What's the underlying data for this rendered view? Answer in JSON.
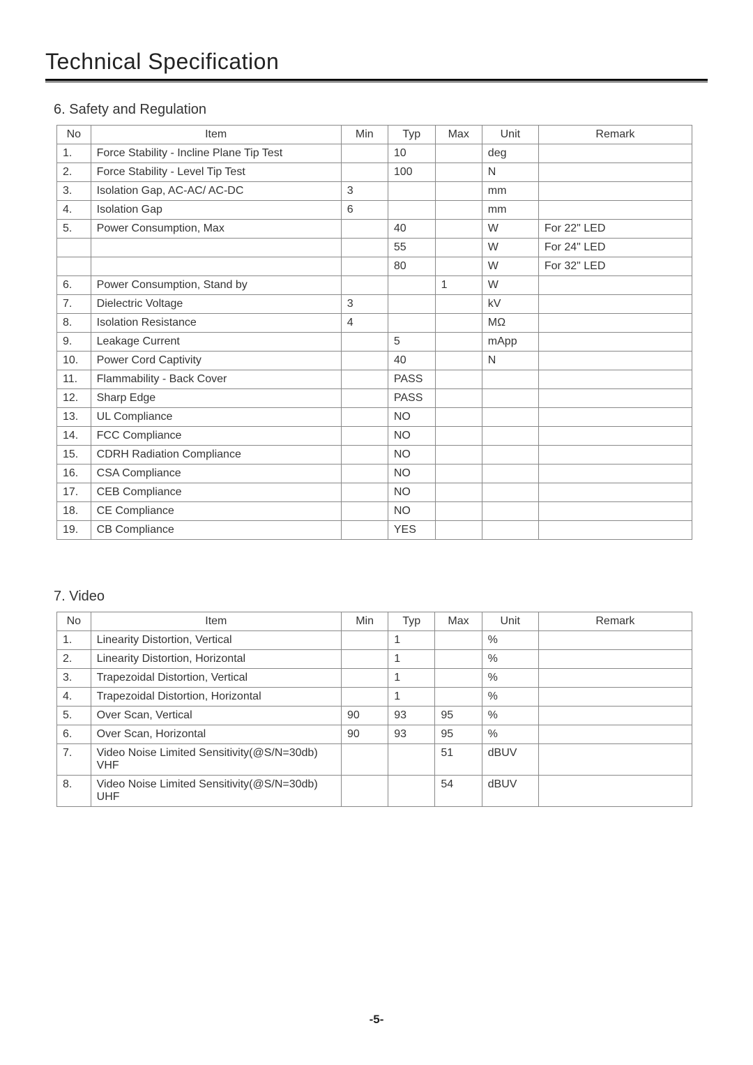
{
  "page_title": "Technical Specification",
  "page_number": "-5-",
  "table_headers": {
    "no": "No",
    "item": "Item",
    "min": "Min",
    "typ": "Typ",
    "max": "Max",
    "unit": "Unit",
    "remark": "Remark"
  },
  "section1": {
    "heading": "6. Safety and Regulation",
    "rows": [
      {
        "no": "1.",
        "item": "Force Stability - Incline Plane Tip Test",
        "min": "",
        "typ": "10",
        "max": "",
        "unit": "deg",
        "remark": ""
      },
      {
        "no": "2.",
        "item": "Force Stability - Level Tip Test",
        "min": "",
        "typ": "100",
        "max": "",
        "unit": "N",
        "remark": ""
      },
      {
        "no": "3.",
        "item": "Isolation Gap, AC-AC/ AC-DC",
        "min": "3",
        "typ": "",
        "max": "",
        "unit": "mm",
        "remark": ""
      },
      {
        "no": "4.",
        "item": "Isolation Gap",
        "min": "6",
        "typ": "",
        "max": "",
        "unit": "mm",
        "remark": ""
      },
      {
        "no": "5.",
        "item": "Power Consumption, Max",
        "min": "",
        "typ": "40",
        "max": "",
        "unit": "W",
        "remark": "For 22\" LED"
      },
      {
        "no": "",
        "item": "",
        "min": "",
        "typ": "55",
        "max": "",
        "unit": "W",
        "remark": "For 24\" LED"
      },
      {
        "no": "",
        "item": "",
        "min": "",
        "typ": "80",
        "max": "",
        "unit": "W",
        "remark": "For 32\" LED"
      },
      {
        "no": "6.",
        "item": "Power Consumption, Stand by",
        "min": "",
        "typ": "",
        "max": "1",
        "unit": "W",
        "remark": ""
      },
      {
        "no": "7.",
        "item": "Dielectric Voltage",
        "min": "3",
        "typ": "",
        "max": "",
        "unit": "kV",
        "remark": ""
      },
      {
        "no": "8.",
        "item": "Isolation Resistance",
        "min": "4",
        "typ": "",
        "max": "",
        "unit": "MΩ",
        "remark": ""
      },
      {
        "no": "9.",
        "item": "Leakage Current",
        "min": "",
        "typ": "5",
        "max": "",
        "unit": "mApp",
        "remark": ""
      },
      {
        "no": "10.",
        "item": "Power Cord Captivity",
        "min": "",
        "typ": "40",
        "max": "",
        "unit": "N",
        "remark": ""
      },
      {
        "no": "11.",
        "item": "Flammability - Back Cover",
        "min": "",
        "typ": "PASS",
        "max": "",
        "unit": "",
        "remark": ""
      },
      {
        "no": "12.",
        "item": "Sharp Edge",
        "min": "",
        "typ": "PASS",
        "max": "",
        "unit": "",
        "remark": ""
      },
      {
        "no": "13.",
        "item": "UL Compliance",
        "min": "",
        "typ": "NO",
        "max": "",
        "unit": "",
        "remark": ""
      },
      {
        "no": "14.",
        "item": "FCC Compliance",
        "min": "",
        "typ": "NO",
        "max": "",
        "unit": "",
        "remark": ""
      },
      {
        "no": "15.",
        "item": "CDRH Radiation Compliance",
        "min": "",
        "typ": "NO",
        "max": "",
        "unit": "",
        "remark": ""
      },
      {
        "no": "16.",
        "item": "CSA Compliance",
        "min": "",
        "typ": "NO",
        "max": "",
        "unit": "",
        "remark": ""
      },
      {
        "no": "17.",
        "item": "CEB Compliance",
        "min": "",
        "typ": "NO",
        "max": "",
        "unit": "",
        "remark": ""
      },
      {
        "no": "18.",
        "item": "CE Compliance",
        "min": "",
        "typ": "NO",
        "max": "",
        "unit": "",
        "remark": ""
      },
      {
        "no": "19.",
        "item": "CB Compliance",
        "min": "",
        "typ": "YES",
        "max": "",
        "unit": "",
        "remark": ""
      }
    ]
  },
  "section2": {
    "heading": "7. Video",
    "rows": [
      {
        "no": "1.",
        "item": "Linearity Distortion, Vertical",
        "min": "",
        "typ": "1",
        "max": "",
        "unit": "%",
        "remark": ""
      },
      {
        "no": "2.",
        "item": "Linearity Distortion, Horizontal",
        "min": "",
        "typ": "1",
        "max": "",
        "unit": "%",
        "remark": ""
      },
      {
        "no": "3.",
        "item": "Trapezoidal Distortion, Vertical",
        "min": "",
        "typ": "1",
        "max": "",
        "unit": "%",
        "remark": ""
      },
      {
        "no": "4.",
        "item": "Trapezoidal Distortion, Horizontal",
        "min": "",
        "typ": "1",
        "max": "",
        "unit": "%",
        "remark": ""
      },
      {
        "no": "5.",
        "item": "Over Scan, Vertical",
        "min": "90",
        "typ": "93",
        "max": "95",
        "unit": "%",
        "remark": ""
      },
      {
        "no": "6.",
        "item": "Over Scan, Horizontal",
        "min": "90",
        "typ": "93",
        "max": "95",
        "unit": "%",
        "remark": ""
      },
      {
        "no": "7.",
        "item": "Video Noise Limited Sensitivity(@S/N=30db) VHF",
        "min": "",
        "typ": "",
        "max": "51",
        "unit": "dBUV",
        "remark": ""
      },
      {
        "no": "8.",
        "item": "Video Noise Limited Sensitivity(@S/N=30db) UHF",
        "min": "",
        "typ": "",
        "max": "54",
        "unit": "dBUV",
        "remark": ""
      }
    ]
  }
}
